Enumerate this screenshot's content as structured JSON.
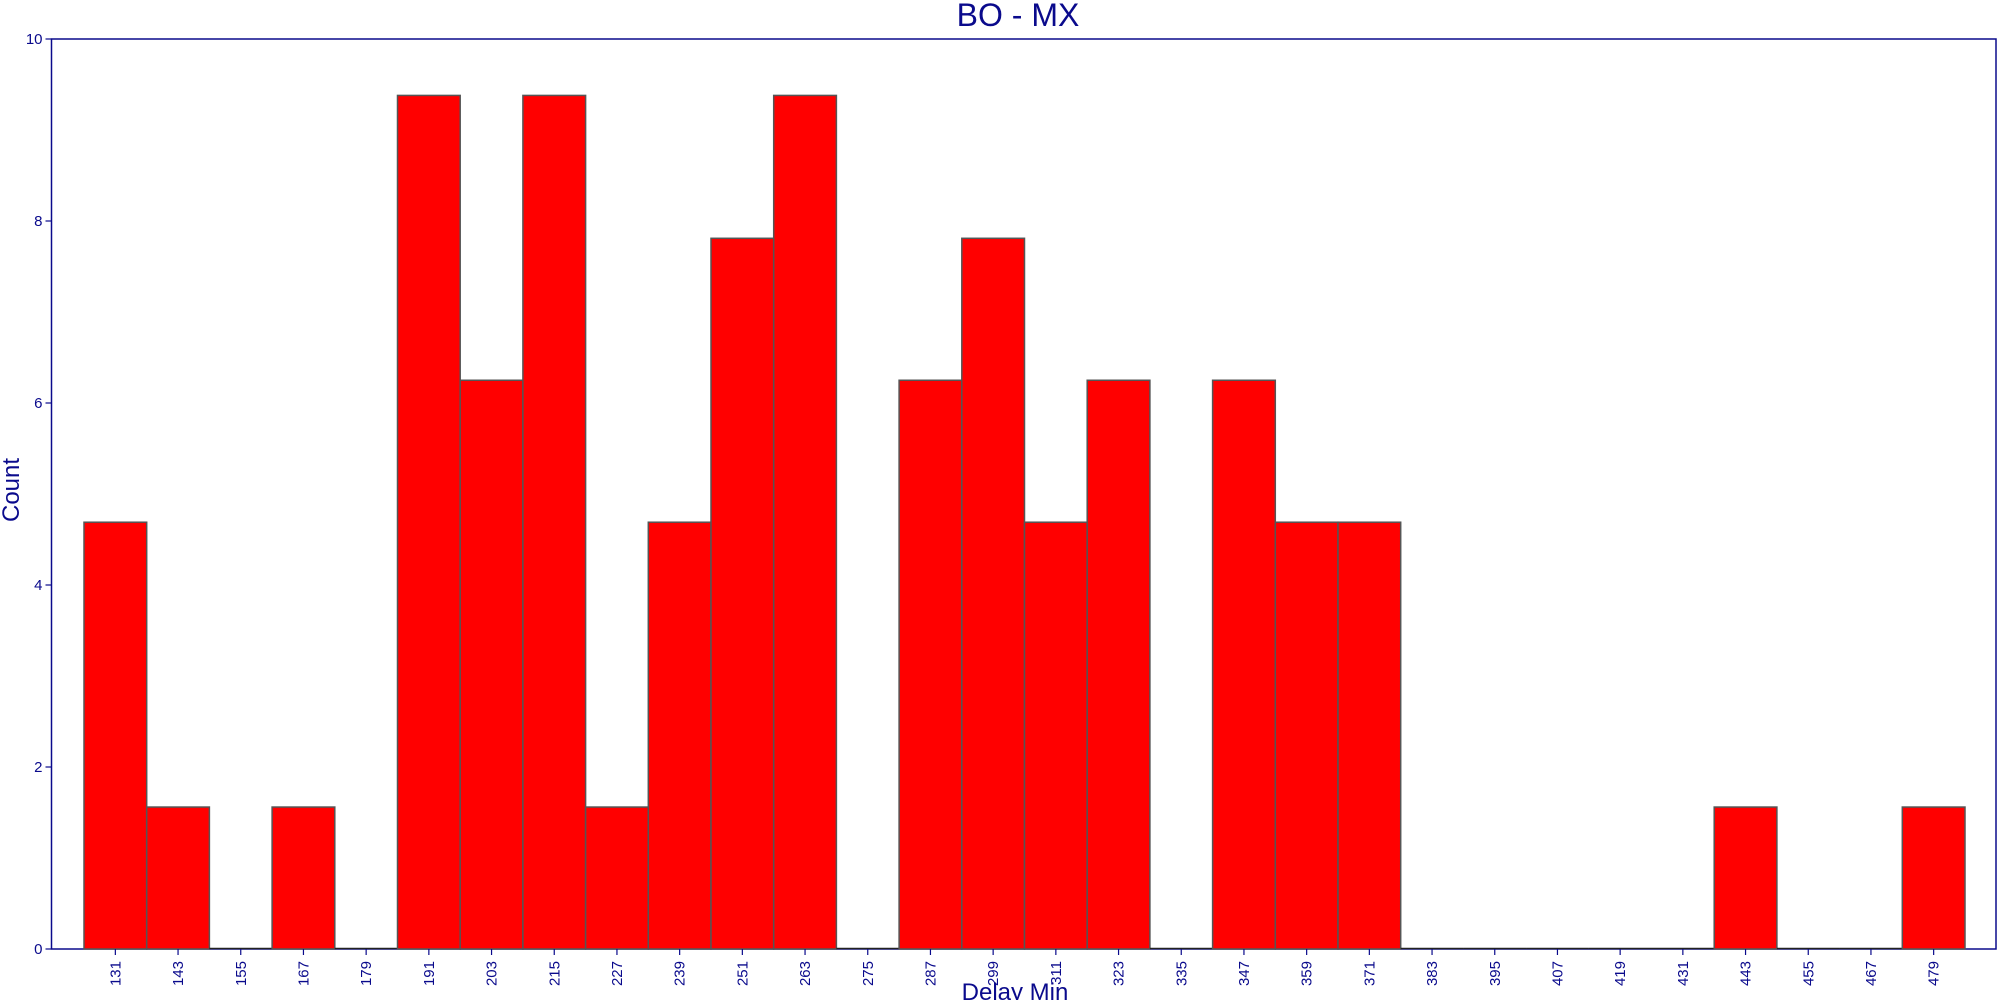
{
  "chart_data": {
    "type": "bar",
    "title": "BO - MX",
    "xlabel": "Delay Min",
    "ylabel": "Count",
    "categories": [
      "131",
      "143",
      "155",
      "167",
      "179",
      "191",
      "203",
      "215",
      "227",
      "239",
      "251",
      "263",
      "275",
      "287",
      "299",
      "311",
      "323",
      "335",
      "347",
      "359",
      "371",
      "383",
      "395",
      "407",
      "419",
      "431",
      "443",
      "455",
      "467",
      "479"
    ],
    "values": [
      4.69,
      1.56,
      0,
      1.56,
      0,
      9.38,
      6.25,
      9.38,
      1.56,
      4.69,
      7.81,
      9.38,
      0,
      6.25,
      7.81,
      4.69,
      6.25,
      0,
      6.25,
      4.69,
      4.69,
      0,
      0,
      0,
      0,
      0,
      1.56,
      0,
      0,
      1.56
    ],
    "ylim": [
      0,
      10
    ],
    "yticks": [
      0,
      2,
      4,
      6,
      8,
      10
    ],
    "grid": false,
    "colors": {
      "bar": "#ff0000",
      "bar_edge": "#555555",
      "axis": "#0a0a8c",
      "text": "#0a0a8c"
    }
  }
}
